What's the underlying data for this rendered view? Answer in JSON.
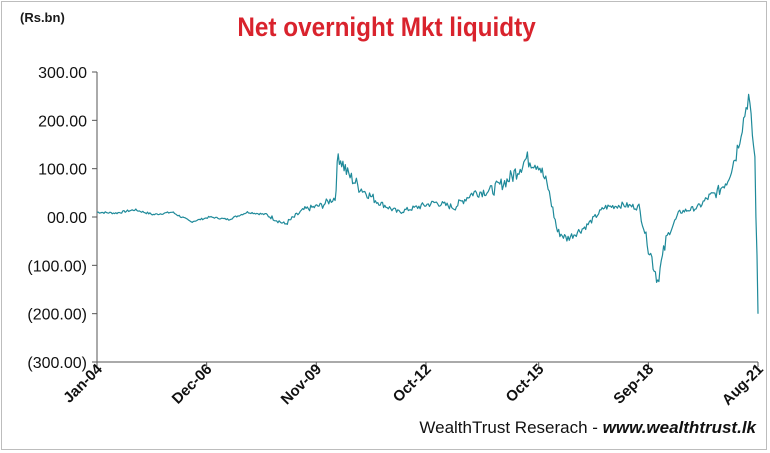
{
  "header": {
    "unit_label": "(Rs.bn)",
    "title": "Net overnight Mkt liquidty"
  },
  "footer": {
    "source": "WealthTrust Reserach - ",
    "url": "www.wealthtrust.lk"
  },
  "colors": {
    "line": "#1f8a9a",
    "title": "#d9232d",
    "axis": "#555555"
  },
  "chart_data": {
    "type": "line",
    "title": "Net overnight Mkt liquidty",
    "ylabel": "(Rs.bn)",
    "xlabel": "",
    "ylim": [
      -300,
      300
    ],
    "xlim": [
      "2004-01",
      "2021-08"
    ],
    "grid": false,
    "legend": "none",
    "y_ticks": [
      {
        "value": 300,
        "label": "300.00"
      },
      {
        "value": 200,
        "label": "200.00"
      },
      {
        "value": 100,
        "label": "100.00"
      },
      {
        "value": 0,
        "label": "00.00"
      },
      {
        "value": -100,
        "label": "(100.00)"
      },
      {
        "value": -200,
        "label": "(200.00)"
      },
      {
        "value": -300,
        "label": "(300.00)"
      }
    ],
    "x_ticks": [
      {
        "value": "2004-01",
        "label": "Jan-04"
      },
      {
        "value": "2006-12",
        "label": "Dec-06"
      },
      {
        "value": "2009-11",
        "label": "Nov-09"
      },
      {
        "value": "2012-10",
        "label": "Oct-12"
      },
      {
        "value": "2015-10",
        "label": "Oct-15"
      },
      {
        "value": "2018-09",
        "label": "Sep-18"
      },
      {
        "value": "2021-08",
        "label": "Aug-21"
      }
    ],
    "series": [
      {
        "x": [
          "2004-01",
          "2004-07",
          "2005-01",
          "2005-07",
          "2006-01",
          "2006-07",
          "2007-01",
          "2007-07",
          "2008-01",
          "2008-07",
          "2009-01",
          "2009-07",
          "2010-01",
          "2010-05",
          "2010-06",
          "2010-09",
          "2011-01",
          "2011-07",
          "2012-01",
          "2012-07",
          "2013-01",
          "2013-07",
          "2014-01",
          "2014-07",
          "2015-01",
          "2015-06",
          "2015-10",
          "2016-01",
          "2016-04",
          "2016-07",
          "2017-01",
          "2017-07",
          "2018-01",
          "2018-06",
          "2018-09",
          "2018-12",
          "2019-03",
          "2019-07",
          "2020-01",
          "2020-04",
          "2020-07",
          "2020-10",
          "2021-01",
          "2021-03",
          "2021-05",
          "2021-07",
          "2021-08"
        ],
        "y": [
          10,
          8,
          15,
          5,
          10,
          -10,
          0,
          -5,
          10,
          5,
          -15,
          15,
          25,
          40,
          130,
          90,
          60,
          30,
          10,
          20,
          30,
          20,
          50,
          55,
          80,
          120,
          110,
          60,
          -30,
          -45,
          -20,
          20,
          25,
          20,
          -60,
          -130,
          -40,
          10,
          20,
          40,
          50,
          75,
          130,
          190,
          250,
          120,
          -200
        ]
      }
    ]
  }
}
